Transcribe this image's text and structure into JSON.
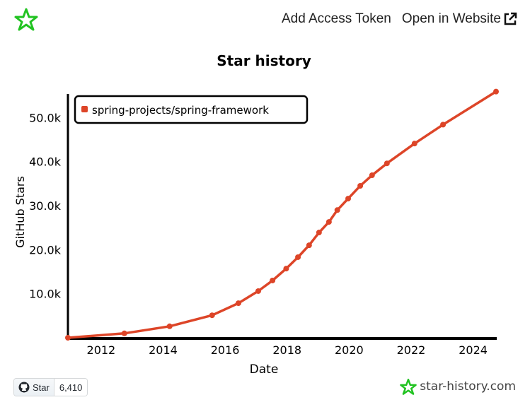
{
  "header": {
    "add_token_label": "Add Access Token",
    "open_website_label": "Open in Website",
    "logo_icon": "star-history-logo",
    "external_icon": "external-link-icon"
  },
  "footer": {
    "github_star_label": "Star",
    "github_star_count": "6,410",
    "brand_text": "star-history.com"
  },
  "colors": {
    "series": "#dd4528",
    "logo": "#22c322",
    "axis": "#000000"
  },
  "chart_data": {
    "type": "line",
    "title": "Star history",
    "xlabel": "Date",
    "ylabel": "GitHub Stars",
    "xlim": [
      2010.93,
      2024.74
    ],
    "ylim": [
      0,
      56000
    ],
    "xticks": [
      "2012",
      "2014",
      "2016",
      "2018",
      "2020",
      "2022",
      "2024"
    ],
    "xtick_values": [
      2012,
      2014,
      2016,
      2018,
      2020,
      2022,
      2024
    ],
    "yticks": [
      "10.0k",
      "20.0k",
      "30.0k",
      "40.0k",
      "50.0k"
    ],
    "ytick_values": [
      10000,
      20000,
      30000,
      40000,
      50000
    ],
    "legend": {
      "placement": "top-left",
      "entries": [
        "spring-projects/spring-framework"
      ]
    },
    "series": [
      {
        "name": "spring-projects/spring-framework",
        "x": [
          2010.93,
          2012.75,
          2014.21,
          2015.58,
          2016.43,
          2017.07,
          2017.53,
          2017.97,
          2018.35,
          2018.71,
          2019.03,
          2019.35,
          2019.62,
          2019.97,
          2020.36,
          2020.74,
          2021.22,
          2022.11,
          2023.03,
          2024.74
        ],
        "y": [
          0,
          1000,
          2600,
          5100,
          7850,
          10600,
          13000,
          15700,
          18300,
          21000,
          23900,
          26300,
          29000,
          31600,
          34500,
          36900,
          39600,
          44100,
          48400,
          55900
        ]
      }
    ]
  }
}
